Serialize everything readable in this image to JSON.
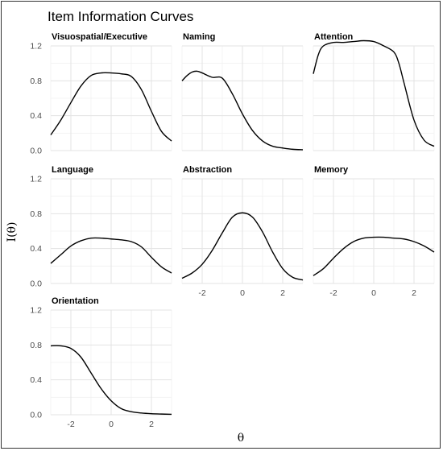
{
  "chart_data": {
    "type": "line",
    "title": "Item Information Curves",
    "xlabel": "θ",
    "ylabel": "I(θ)",
    "xlim": [
      -3,
      3
    ],
    "ylim": [
      0,
      1.2
    ],
    "x_ticks": [
      -2,
      0,
      2
    ],
    "y_ticks": [
      0.0,
      0.4,
      0.8,
      1.2
    ],
    "x_tick_labels": [
      "-2",
      "0",
      "2"
    ],
    "y_tick_labels": [
      "0.0",
      "0.4",
      "0.8",
      "1.2"
    ],
    "grid": true,
    "facets": [
      {
        "name": "Visuospatial/Executive",
        "x": [
          -3,
          -2.5,
          -2,
          -1.5,
          -1,
          -0.5,
          0,
          0.5,
          1,
          1.5,
          2,
          2.5,
          3
        ],
        "y": [
          0.18,
          0.35,
          0.55,
          0.74,
          0.86,
          0.89,
          0.89,
          0.88,
          0.85,
          0.7,
          0.45,
          0.22,
          0.11
        ]
      },
      {
        "name": "Naming",
        "x": [
          -3,
          -2.75,
          -2.5,
          -2.25,
          -2,
          -1.5,
          -1,
          -0.5,
          0,
          0.5,
          1,
          1.5,
          2,
          2.5,
          3
        ],
        "y": [
          0.8,
          0.86,
          0.9,
          0.91,
          0.89,
          0.84,
          0.83,
          0.65,
          0.42,
          0.23,
          0.11,
          0.05,
          0.03,
          0.015,
          0.01
        ]
      },
      {
        "name": "Attention",
        "x": [
          -3,
          -2.75,
          -2.5,
          -2,
          -1.5,
          -1,
          -0.5,
          0,
          0.5,
          1,
          1.25,
          1.5,
          2,
          2.5,
          3
        ],
        "y": [
          0.88,
          1.1,
          1.2,
          1.24,
          1.24,
          1.25,
          1.26,
          1.25,
          1.2,
          1.13,
          1.0,
          0.78,
          0.35,
          0.12,
          0.05
        ]
      },
      {
        "name": "Language",
        "x": [
          -3,
          -2.5,
          -2,
          -1.5,
          -1,
          -0.5,
          0,
          0.5,
          1,
          1.5,
          2,
          2.5,
          3
        ],
        "y": [
          0.23,
          0.33,
          0.43,
          0.49,
          0.52,
          0.52,
          0.51,
          0.5,
          0.48,
          0.42,
          0.3,
          0.19,
          0.12
        ]
      },
      {
        "name": "Abstraction",
        "x": [
          -3,
          -2.5,
          -2,
          -1.5,
          -1,
          -0.5,
          0,
          0.5,
          1,
          1.5,
          2,
          2.5,
          3
        ],
        "y": [
          0.06,
          0.12,
          0.22,
          0.38,
          0.58,
          0.76,
          0.81,
          0.76,
          0.59,
          0.36,
          0.17,
          0.07,
          0.04
        ]
      },
      {
        "name": "Memory",
        "x": [
          -3,
          -2.5,
          -2,
          -1.5,
          -1,
          -0.5,
          0,
          0.5,
          1,
          1.5,
          2,
          2.5,
          3
        ],
        "y": [
          0.09,
          0.17,
          0.29,
          0.4,
          0.48,
          0.52,
          0.53,
          0.53,
          0.52,
          0.51,
          0.48,
          0.43,
          0.36
        ]
      },
      {
        "name": "Orientation",
        "x": [
          -3,
          -2.5,
          -2,
          -1.5,
          -1,
          -0.5,
          0,
          0.5,
          1,
          1.5,
          2,
          2.5,
          3
        ],
        "y": [
          0.79,
          0.79,
          0.76,
          0.66,
          0.48,
          0.3,
          0.16,
          0.07,
          0.035,
          0.02,
          0.012,
          0.008,
          0.005
        ]
      }
    ]
  }
}
